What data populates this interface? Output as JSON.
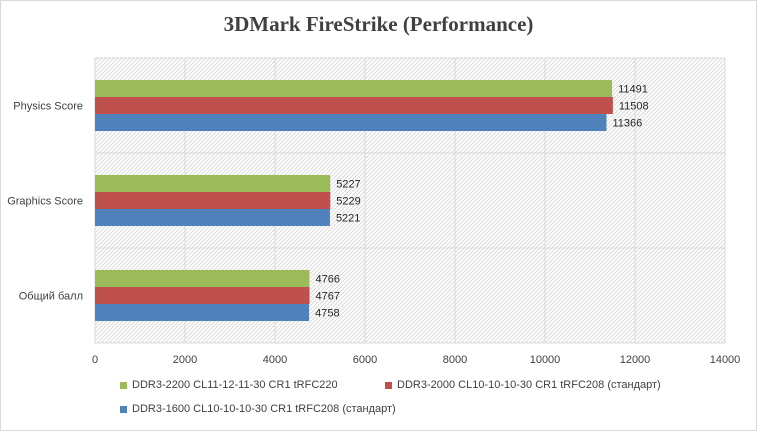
{
  "chart_data": {
    "type": "bar",
    "orientation": "horizontal",
    "title": "3DMark FireStrike (Performance)",
    "categories": [
      "Physics Score",
      "Graphics Score",
      "Общий балл"
    ],
    "series": [
      {
        "name": "DDR3-2200 CL11-12-11-30 CR1 tRFC220",
        "color": "#9bbb59",
        "values": [
          11491,
          5227,
          4766
        ]
      },
      {
        "name": "DDR3-2000 CL10-10-10-30 CR1 tRFC208 (стандарт)",
        "color": "#c0504d",
        "values": [
          11508,
          5229,
          4767
        ]
      },
      {
        "name": "DDR3-1600 CL10-10-10-30 CR1 tRFC208 (стандарт)",
        "color": "#4f81bd",
        "values": [
          11366,
          5221,
          4758
        ]
      }
    ],
    "xlim": [
      0,
      14000
    ],
    "xticks": [
      0,
      2000,
      4000,
      6000,
      8000,
      10000,
      12000,
      14000
    ],
    "xlabel": "",
    "ylabel": "",
    "grid": true,
    "plot_background": "diagonal-hatch",
    "legend_position": "bottom"
  }
}
